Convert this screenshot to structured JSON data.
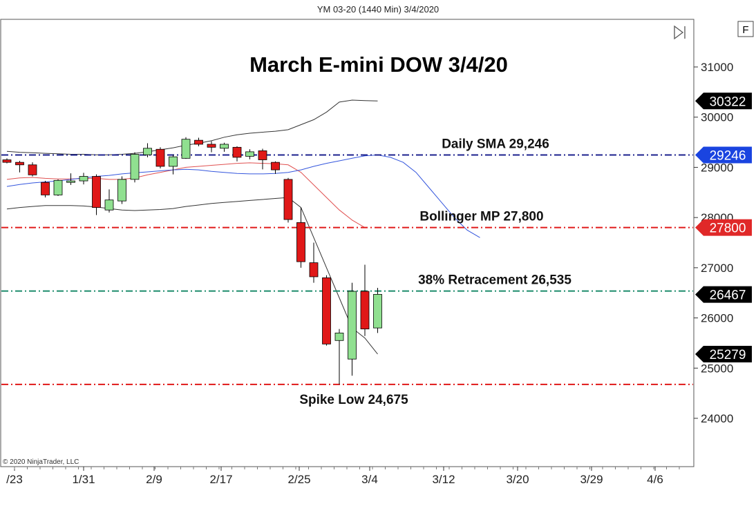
{
  "header": {
    "instrument": "YM 03-20 (1440 Min)  3/4/2020"
  },
  "toolbar": {
    "f_label": "F"
  },
  "copyright": "© 2020 NinjaTrader, LLC",
  "chart_data": {
    "type": "candlestick",
    "title": "March E-mini DOW 3/4/20",
    "ylim": [
      23200,
      31800
    ],
    "y_ticks": [
      24000,
      25000,
      26000,
      27000,
      28000,
      29000,
      30000,
      31000
    ],
    "x_ticks": [
      "/23",
      "1/31",
      "2/9",
      "2/17",
      "2/25",
      "3/4",
      "3/12",
      "3/20",
      "3/29",
      "4/6"
    ],
    "grid": false,
    "candles": [
      {
        "o": 29150,
        "h": 29180,
        "l": 29080,
        "c": 29100
      },
      {
        "o": 29100,
        "h": 29130,
        "l": 28900,
        "c": 29050
      },
      {
        "o": 29050,
        "h": 29100,
        "l": 28820,
        "c": 28850
      },
      {
        "o": 28700,
        "h": 28730,
        "l": 28400,
        "c": 28450
      },
      {
        "o": 28450,
        "h": 28760,
        "l": 28430,
        "c": 28740
      },
      {
        "o": 28700,
        "h": 28880,
        "l": 28650,
        "c": 28730
      },
      {
        "o": 28730,
        "h": 28890,
        "l": 28660,
        "c": 28820
      },
      {
        "o": 28820,
        "h": 28860,
        "l": 28050,
        "c": 28200
      },
      {
        "o": 28150,
        "h": 28560,
        "l": 28100,
        "c": 28350
      },
      {
        "o": 28330,
        "h": 28820,
        "l": 28270,
        "c": 28760
      },
      {
        "o": 28760,
        "h": 29300,
        "l": 28700,
        "c": 29260
      },
      {
        "o": 29250,
        "h": 29480,
        "l": 29200,
        "c": 29380
      },
      {
        "o": 29360,
        "h": 29400,
        "l": 28980,
        "c": 29020
      },
      {
        "o": 29020,
        "h": 29250,
        "l": 28860,
        "c": 29210
      },
      {
        "o": 29180,
        "h": 29600,
        "l": 29170,
        "c": 29560
      },
      {
        "o": 29540,
        "h": 29590,
        "l": 29420,
        "c": 29460
      },
      {
        "o": 29460,
        "h": 29520,
        "l": 29300,
        "c": 29400
      },
      {
        "o": 29380,
        "h": 29490,
        "l": 29310,
        "c": 29460
      },
      {
        "o": 29400,
        "h": 29420,
        "l": 29120,
        "c": 29200
      },
      {
        "o": 29220,
        "h": 29360,
        "l": 29160,
        "c": 29310
      },
      {
        "o": 29330,
        "h": 29370,
        "l": 28960,
        "c": 29150
      },
      {
        "o": 29100,
        "h": 29120,
        "l": 28870,
        "c": 28950
      },
      {
        "o": 28760,
        "h": 28790,
        "l": 27900,
        "c": 27960
      },
      {
        "o": 27900,
        "h": 28200,
        "l": 27000,
        "c": 27120
      },
      {
        "o": 27100,
        "h": 27500,
        "l": 26700,
        "c": 26820
      },
      {
        "o": 26800,
        "h": 26850,
        "l": 25450,
        "c": 25480
      },
      {
        "o": 25550,
        "h": 25780,
        "l": 24675,
        "c": 25700
      },
      {
        "o": 25180,
        "h": 26700,
        "l": 24850,
        "c": 26530
      },
      {
        "o": 26530,
        "h": 27060,
        "l": 25640,
        "c": 25780
      },
      {
        "o": 25800,
        "h": 26600,
        "l": 25700,
        "c": 26470
      }
    ],
    "series": [
      {
        "name": "",
        "role": "bollinger-upper",
        "color": "#333333",
        "values": [
          29320,
          29300,
          29290,
          29280,
          29270,
          29260,
          29260,
          29250,
          29250,
          29260,
          29280,
          29310,
          29350,
          29390,
          29440,
          29480,
          29530,
          29600,
          29650,
          29680,
          29700,
          29720,
          29750,
          29850,
          29950,
          30100,
          30300,
          30340,
          30330,
          30322
        ]
      },
      {
        "name": "",
        "role": "bollinger-lower",
        "color": "#333333",
        "values": [
          28170,
          28200,
          28220,
          28240,
          28240,
          28240,
          28230,
          28210,
          28180,
          28150,
          28140,
          28150,
          28160,
          28180,
          28220,
          28250,
          28280,
          28300,
          28320,
          28340,
          28360,
          28380,
          28400
        ]
      },
      {
        "name": "",
        "role": "bollinger-lower-ext",
        "color": "#333333",
        "values": [
          28400,
          28200,
          27600,
          27000,
          26400,
          25800,
          25600,
          25279
        ]
      },
      {
        "name": "",
        "role": "bollinger-mid",
        "color": "#e05050",
        "values": [
          28760,
          28790,
          28800,
          28780,
          28770,
          28770,
          28780,
          28780,
          28760,
          28760,
          28790,
          28850,
          28900,
          28950,
          29000,
          29020,
          29040,
          29060,
          29080,
          29090,
          29080,
          29070,
          29050,
          28900,
          28650,
          28400,
          28150,
          27950,
          27800
        ]
      },
      {
        "name": "",
        "role": "sma",
        "color": "#3355dd",
        "values": [
          28620,
          28660,
          28690,
          28710,
          28730,
          28760,
          28790,
          28820,
          28840,
          28870,
          28890,
          28910,
          28930,
          28950,
          28960,
          28950,
          28920,
          28900,
          28880,
          28870,
          28870,
          28880,
          28900,
          28950,
          29020,
          29080,
          29130,
          29180,
          29230,
          29246,
          29200,
          29100,
          28900,
          28600,
          28300,
          28000,
          27750,
          27600
        ]
      }
    ],
    "levels": [
      {
        "label": "Daily SMA 29,246",
        "value": 29246,
        "color": "#1a1f8c",
        "badge": "29246",
        "badge_color": "#1a44e0"
      },
      {
        "label": "Bollinger MP 27,800",
        "value": 27800,
        "color": "#e01818",
        "badge": "27800",
        "badge_color": "#e02828"
      },
      {
        "label": "38% Retracement 26,535",
        "value": 26535,
        "color": "#1a8a6a",
        "badge": "26467",
        "badge_color": "#000000"
      },
      {
        "label": "Spike Low 24,675",
        "value": 24675,
        "color": "#e01818",
        "badge": "",
        "badge_color": ""
      }
    ],
    "badges_extra": [
      {
        "text": "30322",
        "value": 30322,
        "color": "#000000"
      },
      {
        "text": "25279",
        "value": 25279,
        "color": "#000000"
      }
    ],
    "colors": {
      "up": "#90e090",
      "down": "#e01818"
    }
  }
}
